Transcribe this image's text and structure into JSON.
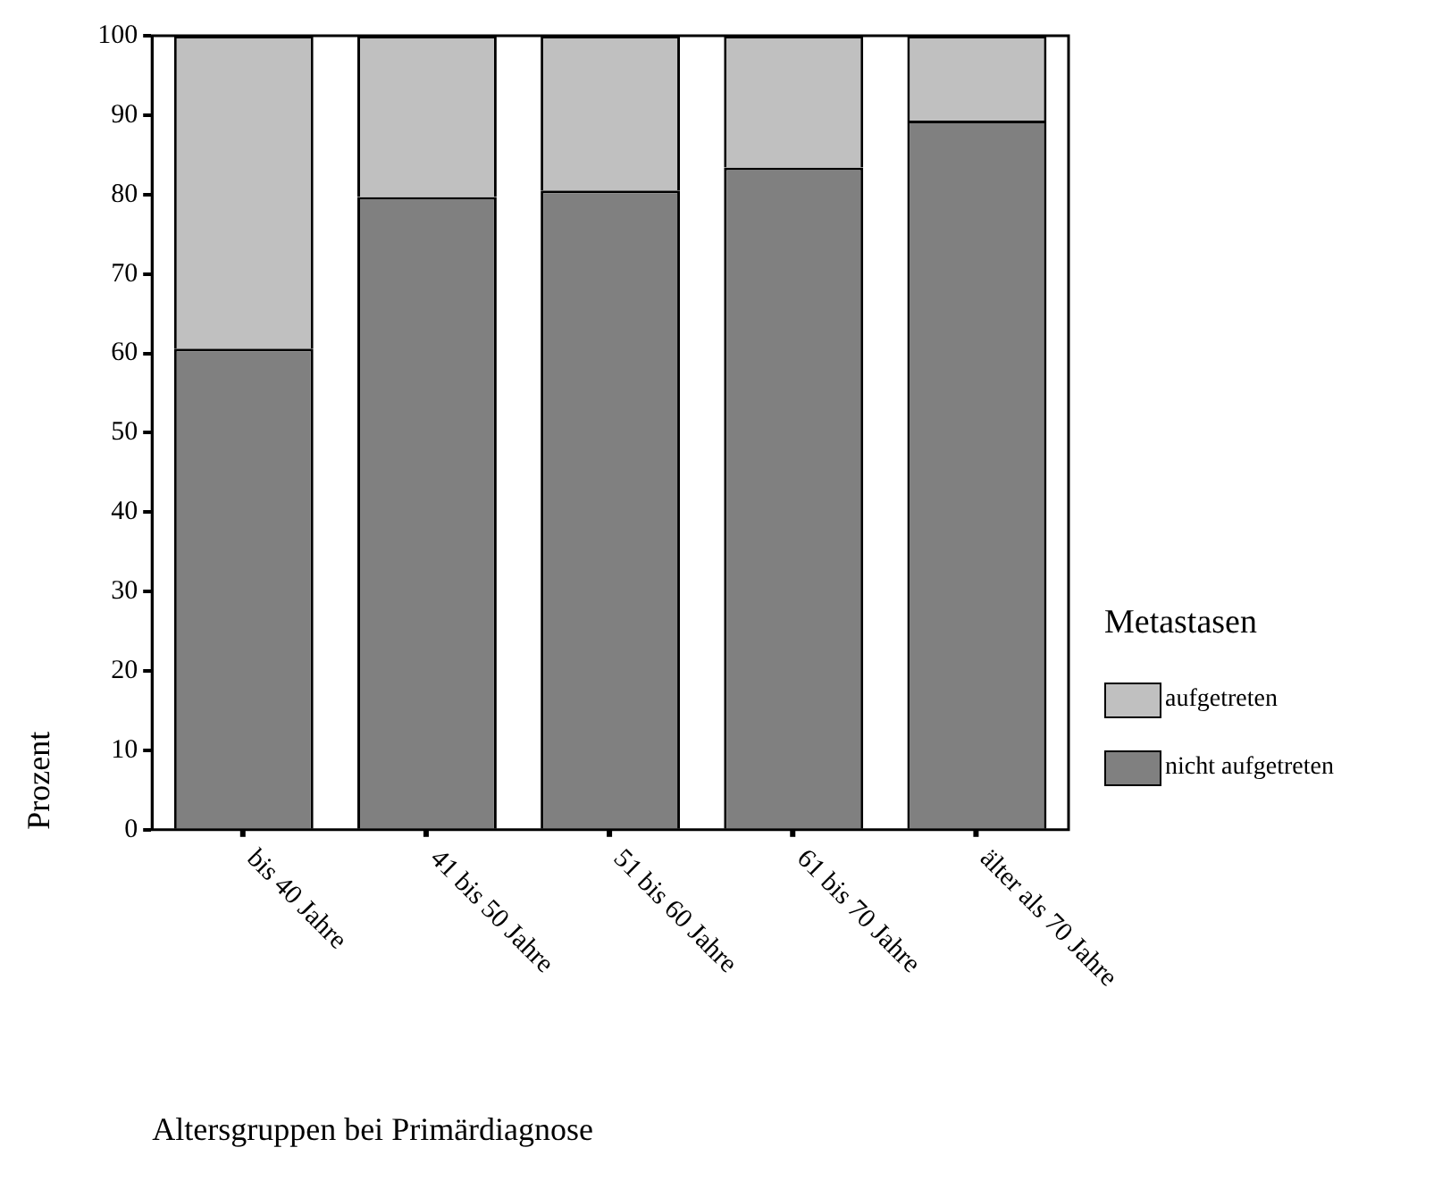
{
  "chart_data": {
    "type": "bar",
    "stacked": true,
    "xlabel": "Altersgruppen bei Primärdiagnose",
    "ylabel": "Prozent",
    "legend_title": "Metastasen",
    "categories": [
      "bis 40 Jahre",
      "41 bis 50 Jahre",
      "51 bis 60 Jahre",
      "61 bis 70 Jahre",
      "älter als 70 Jahre"
    ],
    "series": [
      {
        "name": "nicht aufgetreten",
        "color": "#808080",
        "values": [
          60.6,
          79.7,
          80.5,
          83.4,
          89.3
        ]
      },
      {
        "name": "aufgetreten",
        "color": "#c0c0c0",
        "values": [
          39.4,
          20.3,
          19.5,
          16.6,
          10.7
        ]
      }
    ],
    "ylim": [
      0,
      100
    ],
    "yticks": [
      0,
      10,
      20,
      30,
      40,
      50,
      60,
      70,
      80,
      90,
      100
    ],
    "grid": false,
    "legend": "bottom right"
  }
}
